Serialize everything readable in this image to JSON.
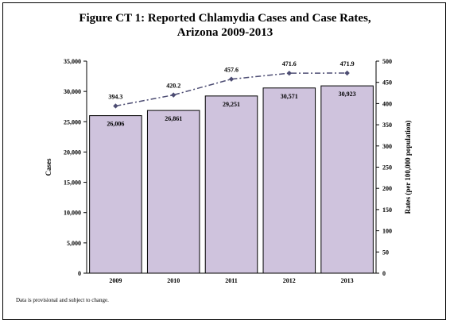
{
  "chart_data": {
    "type": "bar+line",
    "title_line1": "Figure CT 1: Reported Chlamydia Cases and Case Rates,",
    "title_line2": "Arizona 2009-2013",
    "categories": [
      "2009",
      "2010",
      "2011",
      "2012",
      "2013"
    ],
    "series": [
      {
        "type": "bar",
        "axis": "left",
        "values": [
          26006,
          26861,
          29251,
          30571,
          30923
        ],
        "labels": [
          "26,006",
          "26,861",
          "29,251",
          "30,571",
          "30,923"
        ],
        "color": "#cfc3dd"
      },
      {
        "type": "line",
        "axis": "right",
        "values": [
          394.3,
          420.2,
          457.6,
          471.6,
          471.9
        ],
        "labels": [
          "394.3",
          "420.2",
          "457.6",
          "471.6",
          "471.9"
        ],
        "color": "#4d4d73",
        "dash": "dash-dot",
        "marker": "diamond"
      }
    ],
    "ylabel_left": "Cases",
    "ylabel_right": "Rates (per 100,000 population)",
    "ylim_left": [
      0,
      35000
    ],
    "ylim_right": [
      0,
      500
    ],
    "yticks_left": [
      "0",
      "5,000",
      "10,000",
      "15,000",
      "20,000",
      "25,000",
      "30,000",
      "35,000"
    ],
    "yticks_right": [
      "0",
      "50",
      "100",
      "150",
      "200",
      "250",
      "300",
      "350",
      "400",
      "450",
      "500"
    ],
    "grid": false,
    "legend": "none"
  },
  "footnote": "Data is provisional and subject to change."
}
